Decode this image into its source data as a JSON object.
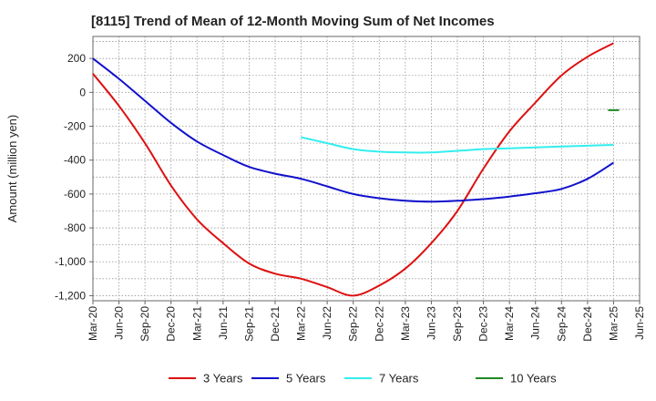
{
  "chart_data": {
    "type": "line",
    "title": "[8115]  Trend of Mean of 12-Month Moving Sum of Net Incomes",
    "xlabel": "",
    "ylabel": "Amount (million yen)",
    "ylim": [
      -1230,
      330
    ],
    "xlim": [
      "Mar-20",
      "Jun-25"
    ],
    "x_ticks": [
      "Mar-20",
      "Jun-20",
      "Sep-20",
      "Dec-20",
      "Mar-21",
      "Jun-21",
      "Sep-21",
      "Dec-21",
      "Mar-22",
      "Jun-22",
      "Sep-22",
      "Dec-22",
      "Mar-23",
      "Jun-23",
      "Sep-23",
      "Dec-23",
      "Mar-24",
      "Jun-24",
      "Sep-24",
      "Dec-24",
      "Mar-25",
      "Jun-25"
    ],
    "y_ticks": [
      200,
      0,
      -200,
      -400,
      -600,
      -800,
      -1000,
      -1200
    ],
    "y_tick_labels": [
      "200",
      "0",
      "-200",
      "-400",
      "-600",
      "-800",
      "-1,000",
      "-1,200"
    ],
    "grid": true,
    "legend_position": "bottom",
    "series": [
      {
        "name": "3 Years",
        "color": "#dd1111",
        "x": [
          "Mar-20",
          "Jun-20",
          "Sep-20",
          "Dec-20",
          "Mar-21",
          "Jun-21",
          "Sep-21",
          "Dec-21",
          "Mar-22",
          "Jun-22",
          "Sep-22",
          "Dec-22",
          "Mar-23",
          "Jun-23",
          "Sep-23",
          "Dec-23",
          "Mar-24",
          "Jun-24",
          "Sep-24",
          "Dec-24",
          "Mar-25"
        ],
        "values": [
          110,
          -80,
          -300,
          -550,
          -750,
          -890,
          -1010,
          -1070,
          -1100,
          -1150,
          -1200,
          -1140,
          -1040,
          -890,
          -700,
          -450,
          -230,
          -60,
          100,
          210,
          290
        ]
      },
      {
        "name": "5 Years",
        "color": "#1111cc",
        "x": [
          "Mar-20",
          "Jun-20",
          "Sep-20",
          "Dec-20",
          "Mar-21",
          "Jun-21",
          "Sep-21",
          "Dec-21",
          "Mar-22",
          "Jun-22",
          "Sep-22",
          "Dec-22",
          "Mar-23",
          "Jun-23",
          "Sep-23",
          "Dec-23",
          "Mar-24",
          "Jun-24",
          "Sep-24",
          "Dec-24",
          "Mar-25"
        ],
        "values": [
          200,
          80,
          -50,
          -180,
          -290,
          -370,
          -440,
          -480,
          -510,
          -555,
          -600,
          -625,
          -640,
          -645,
          -640,
          -630,
          -615,
          -595,
          -570,
          -510,
          -415
        ]
      },
      {
        "name": "7 Years",
        "color": "#33eeee",
        "x": [
          "Mar-22",
          "Jun-22",
          "Sep-22",
          "Dec-22",
          "Mar-23",
          "Jun-23",
          "Sep-23",
          "Dec-23",
          "Mar-24",
          "Jun-24",
          "Sep-24",
          "Dec-24",
          "Mar-25"
        ],
        "values": [
          -265,
          -300,
          -335,
          -350,
          -355,
          -355,
          -345,
          -335,
          -330,
          -325,
          -320,
          -315,
          -310
        ]
      },
      {
        "name": "10 Years",
        "color": "#228822",
        "x": [
          "Mar-25"
        ],
        "values": [
          -105
        ]
      }
    ]
  }
}
